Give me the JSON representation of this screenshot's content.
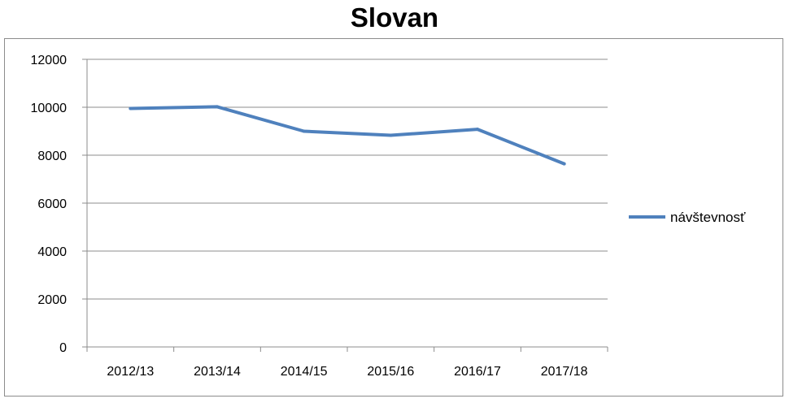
{
  "chart_data": {
    "type": "line",
    "title": "Slovan",
    "categories": [
      "2012/13",
      "2013/14",
      "2014/15",
      "2015/16",
      "2016/17",
      "2017/18"
    ],
    "series": [
      {
        "name": "návštevnosť",
        "values": [
          9950,
          10020,
          9000,
          8830,
          9080,
          7640
        ],
        "color": "#4f81bd"
      }
    ],
    "ylim": [
      0,
      12000
    ],
    "yticks": [
      0,
      2000,
      4000,
      6000,
      8000,
      10000,
      12000
    ],
    "grid": true,
    "legend_position": "right"
  }
}
